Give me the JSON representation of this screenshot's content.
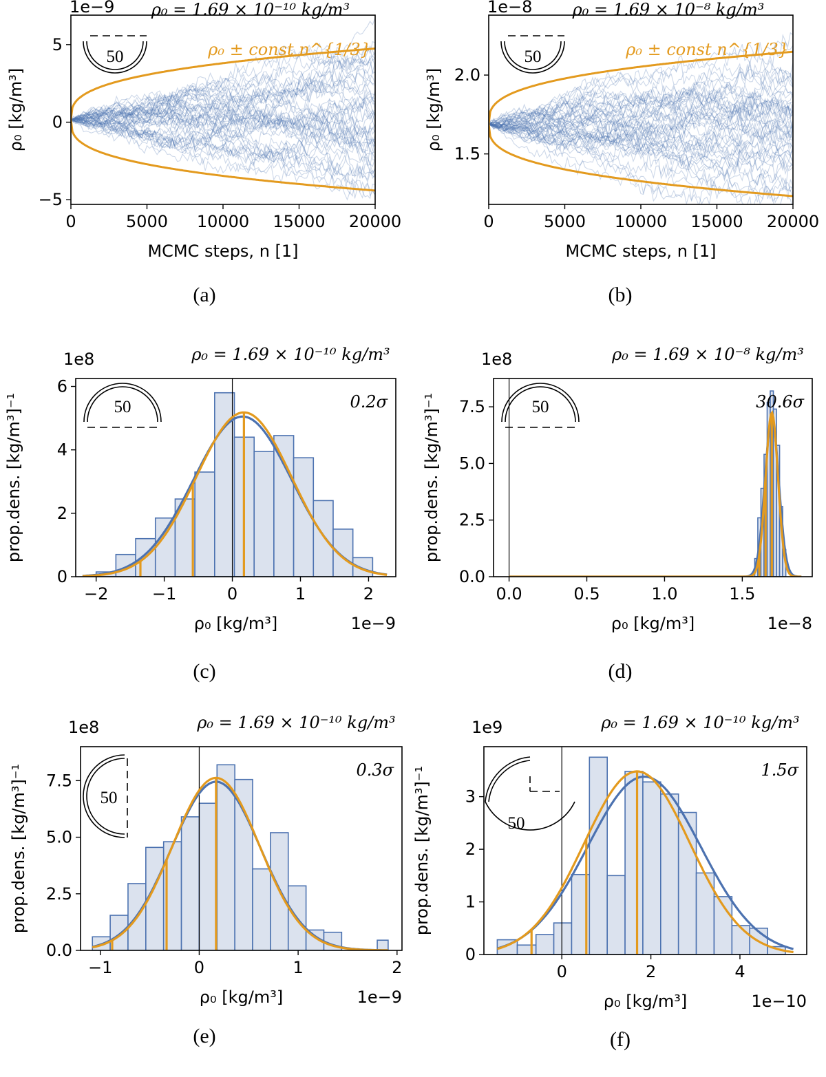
{
  "figure": {
    "panels": [
      "a",
      "b",
      "c",
      "d",
      "e",
      "f"
    ]
  },
  "chart_data": [
    {
      "id": "a",
      "type": "line",
      "caption": "(a)",
      "title": "ρ₀ = 1.69 × 10⁻¹⁰ kg/m³",
      "xlabel": "MCMC steps, n [1]",
      "ylabel": "ρ₀ [kg/m³]",
      "offset_label": "1e−9",
      "xlim": [
        0,
        20000
      ],
      "ylim": [
        -5.3,
        6.9
      ],
      "xticks": [
        0,
        5000,
        10000,
        15000,
        20000
      ],
      "xtick_labels": [
        "0",
        "5000",
        "10000",
        "15000",
        "20000"
      ],
      "yticks": [
        -5,
        0,
        5
      ],
      "ytick_labels": [
        "−5",
        "0",
        "5"
      ],
      "trace_center": 0.17,
      "envelope": {
        "label": "ρ₀ ± const n^{1/3}",
        "center": 0.17,
        "scale": 0.1686,
        "color": "#e39a1e"
      },
      "n_traces": 50,
      "band_endpoints": [
        -3.0,
        3.5
      ],
      "badge": {
        "value": "50",
        "bearing_marks": "semicircle"
      }
    },
    {
      "id": "b",
      "type": "line",
      "caption": "(b)",
      "title": "ρ₀ = 1.69 × 10⁻⁸ kg/m³",
      "xlabel": "MCMC steps, n [1]",
      "ylabel": "ρ₀ [kg/m³]",
      "offset_label": "1e−8",
      "xlim": [
        0,
        20000
      ],
      "ylim": [
        1.18,
        2.38
      ],
      "xticks": [
        0,
        5000,
        10000,
        15000,
        20000
      ],
      "xtick_labels": [
        "0",
        "5000",
        "10000",
        "15000",
        "20000"
      ],
      "yticks": [
        1.5,
        2.0
      ],
      "ytick_labels": [
        "1.5",
        "2.0"
      ],
      "trace_center": 1.69,
      "envelope": {
        "label": "ρ₀ ± const n^{1/3}",
        "center": 1.69,
        "scale": 0.01686,
        "color": "#e39a1e"
      },
      "n_traces": 50,
      "band_endpoints": [
        1.35,
        2.0
      ],
      "badge": {
        "value": "50",
        "bearing_marks": "semicircle"
      }
    },
    {
      "id": "c",
      "type": "bar",
      "caption": "(c)",
      "title": "ρ₀ = 1.69 × 10⁻¹⁰ kg/m³",
      "xlabel": "ρ₀ [kg/m³]",
      "ylabel": "prop.dens. [kg/m³]⁻¹",
      "x_offset_label": "1e−9",
      "y_offset_label": "1e8",
      "sigma_label": "0.2σ",
      "xlim": [
        -2.3,
        2.4
      ],
      "ylim": [
        0,
        6.25
      ],
      "xticks": [
        -2,
        -1,
        0,
        1,
        2
      ],
      "xtick_labels": [
        "−2",
        "−1",
        "0",
        "1",
        "2"
      ],
      "yticks": [
        0,
        2,
        4,
        6
      ],
      "ytick_labels": [
        "0",
        "2",
        "4",
        "6"
      ],
      "bin_edges": [
        -2.0,
        -1.71,
        -1.42,
        -1.13,
        -0.84,
        -0.55,
        -0.26,
        0.03,
        0.32,
        0.61,
        0.9,
        1.19,
        1.48,
        1.77,
        2.06
      ],
      "bins": [
        0.15,
        0.7,
        1.2,
        1.85,
        2.45,
        3.3,
        5.8,
        4.4,
        3.95,
        4.45,
        3.75,
        2.4,
        1.5,
        0.6
      ],
      "truth_line": 0,
      "gauss_blue": {
        "mean": 0.15,
        "sd": 0.72,
        "amp": 5.05
      },
      "gauss_orange": {
        "mean": 0.17,
        "sd": 0.7,
        "amp": 5.18
      },
      "curve_range": [
        -2.2,
        2.27
      ],
      "orange_marks": [
        -1.35,
        -0.58,
        0.17
      ],
      "badge": {
        "value": "50",
        "bearing_marks": "semicircle-top"
      }
    },
    {
      "id": "d",
      "type": "bar",
      "caption": "(d)",
      "title": "ρ₀ = 1.69 × 10⁻⁸ kg/m³",
      "xlabel": "ρ₀ [kg/m³]",
      "ylabel": "prop.dens. [kg/m³]⁻¹",
      "x_offset_label": "1e−8",
      "y_offset_label": "1e8",
      "sigma_label": "30.6σ",
      "xlim": [
        -0.1,
        1.95
      ],
      "ylim": [
        0,
        8.75
      ],
      "xticks": [
        0,
        0.5,
        1.0,
        1.5
      ],
      "xtick_labels": [
        "0.0",
        "0.5",
        "1.0",
        "1.5"
      ],
      "yticks": [
        0,
        2.5,
        5.0,
        7.5
      ],
      "ytick_labels": [
        "0.0",
        "2.5",
        "5.0",
        "7.5"
      ],
      "bin_edges": [
        1.58,
        1.6,
        1.62,
        1.64,
        1.66,
        1.68,
        1.7,
        1.72,
        1.74,
        1.76,
        1.78
      ],
      "bins": [
        0.8,
        2.6,
        3.9,
        5.4,
        7.7,
        8.2,
        7.4,
        5.8,
        3.1,
        1.2
      ],
      "truth_line": 0,
      "gauss_blue": {
        "mean": 1.69,
        "sd": 0.045,
        "amp": 7.0
      },
      "gauss_orange": {
        "mean": 1.69,
        "sd": 0.04,
        "amp": 7.25
      },
      "curve_range": [
        0,
        1.88
      ],
      "orange_marks": [
        1.61,
        1.65,
        1.69
      ],
      "badge": {
        "value": "50",
        "bearing_marks": "semicircle-top"
      }
    },
    {
      "id": "e",
      "type": "bar",
      "caption": "(e)",
      "title": "ρ₀ = 1.69 × 10⁻¹⁰ kg/m³",
      "xlabel": "ρ₀ [kg/m³]",
      "ylabel": "prop.dens. [kg/m³]⁻¹",
      "x_offset_label": "1e−9",
      "y_offset_label": "1e8",
      "sigma_label": "0.3σ",
      "xlim": [
        -1.2,
        2.05
      ],
      "ylim": [
        0,
        9.0
      ],
      "xticks": [
        -1,
        0,
        1,
        2
      ],
      "xtick_labels": [
        "−1",
        "0",
        "1",
        "2"
      ],
      "yticks": [
        0,
        2.5,
        5.0,
        7.5
      ],
      "ytick_labels": [
        "0.0",
        "2.5",
        "5.0",
        "7.5"
      ],
      "bin_edges": [
        -1.08,
        -0.9,
        -0.72,
        -0.54,
        -0.36,
        -0.18,
        0,
        0.18,
        0.36,
        0.54,
        0.72,
        0.9,
        1.08,
        1.26,
        1.44,
        1.62,
        1.8,
        1.91
      ],
      "bins": [
        0.6,
        1.55,
        2.95,
        4.55,
        4.8,
        5.9,
        6.5,
        8.2,
        7.55,
        3.6,
        5.2,
        2.85,
        0.9,
        0.8,
        0,
        0,
        0.45
      ],
      "truth_line": 0,
      "gauss_blue": {
        "mean": 0.17,
        "sd": 0.45,
        "amp": 7.45
      },
      "gauss_orange": {
        "mean": 0.17,
        "sd": 0.44,
        "amp": 7.62
      },
      "curve_range": [
        -1.08,
        1.91
      ],
      "orange_marks": [
        -0.88,
        -0.33,
        0.17
      ],
      "badge": {
        "value": "50",
        "bearing_marks": "semicircle-left"
      }
    },
    {
      "id": "f",
      "type": "bar",
      "caption": "(f)",
      "title": "ρ₀ = 1.69 × 10⁻¹⁰ kg/m³",
      "xlabel": "ρ₀ [kg/m³]",
      "ylabel": "prop.dens. [kg/m³]⁻¹",
      "x_offset_label": "1e−10",
      "y_offset_label": "1e9",
      "sigma_label": "1.5σ",
      "xlim": [
        -1.75,
        5.5
      ],
      "ylim": [
        0,
        3.95
      ],
      "xticks": [
        0,
        2,
        4
      ],
      "xtick_labels": [
        "0",
        "2",
        "4"
      ],
      "yticks": [
        0,
        1,
        2,
        3
      ],
      "ytick_labels": [
        "0",
        "1",
        "2",
        "3"
      ],
      "bin_edges": [
        -1.45,
        -1.0,
        -0.58,
        -0.18,
        0.22,
        0.62,
        1.02,
        1.42,
        1.82,
        2.22,
        2.62,
        3.02,
        3.42,
        3.82,
        4.22,
        4.62,
        5.02
      ],
      "bins": [
        0.28,
        0.18,
        0.38,
        0.6,
        1.52,
        3.75,
        1.5,
        3.48,
        3.28,
        3.05,
        2.7,
        1.55,
        1.1,
        0.55,
        0.5,
        0.15
      ],
      "truth_line": 0,
      "gauss_blue": {
        "mean": 1.85,
        "sd": 1.27,
        "amp": 3.38
      },
      "gauss_orange": {
        "mean": 1.69,
        "sd": 1.19,
        "amp": 3.48
      },
      "curve_range": [
        -1.45,
        5.2
      ],
      "orange_marks": [
        -0.68,
        0.55,
        1.69
      ],
      "badge": {
        "value": "50",
        "bearing_marks": "quarter"
      }
    }
  ],
  "colors": {
    "blue": "#4c72b0",
    "orange": "#e39a1e",
    "bar_fill": "#dbe2ee"
  }
}
